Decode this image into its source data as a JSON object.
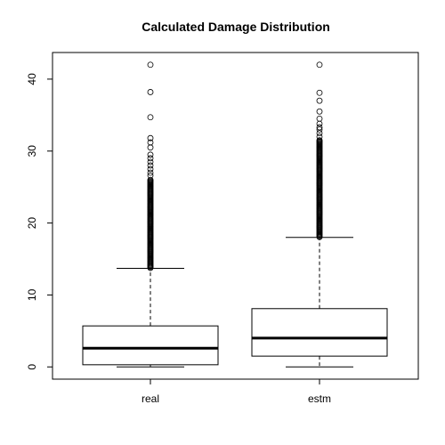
{
  "chart_data": {
    "type": "boxplot",
    "title": "Calculated Damage Distribution",
    "xlabel": "",
    "ylabel": "",
    "ylim": [
      -1.7,
      43.7
    ],
    "yticks": [
      0,
      10,
      20,
      30,
      40
    ],
    "grid": false,
    "legend": "none",
    "categories": [
      "real",
      "estm"
    ],
    "boxes": [
      {
        "name": "real",
        "whisker_low": 0.0,
        "q1": 0.3,
        "median": 2.6,
        "q3": 5.7,
        "whisker_high": 13.7,
        "outlier_range": [
          13.7,
          26.0
        ],
        "outliers_extra": [
          26.6,
          27.0,
          27.5,
          28.0,
          28.5,
          29.0,
          29.5,
          30.5,
          31.2,
          31.8,
          34.7,
          38.2,
          42.0
        ]
      },
      {
        "name": "estm",
        "whisker_low": 0.0,
        "q1": 1.5,
        "median": 4.0,
        "q3": 8.1,
        "whisker_high": 18.0,
        "outlier_range": [
          18.0,
          31.5
        ],
        "outliers_extra": [
          32.0,
          32.5,
          33.0,
          33.3,
          33.8,
          34.5,
          35.5,
          37.0,
          38.1,
          42.0
        ]
      }
    ]
  }
}
